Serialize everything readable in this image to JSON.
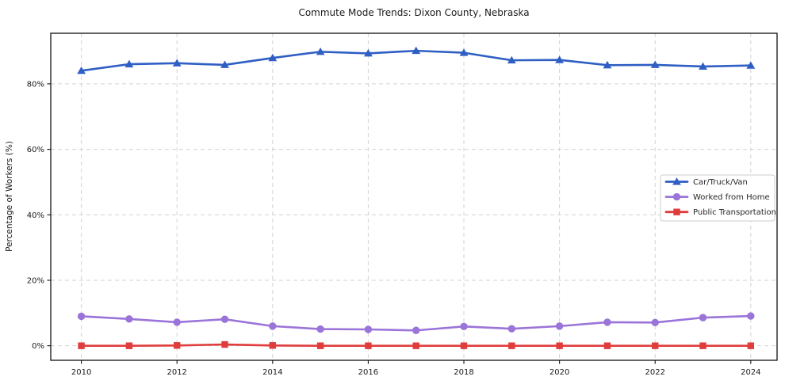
{
  "chart_data": {
    "type": "line",
    "title": "Commute Mode Trends: Dixon County, Nebraska",
    "xlabel": "",
    "ylabel": "Percentage of Workers (%)",
    "x": [
      2010,
      2011,
      2012,
      2013,
      2014,
      2015,
      2016,
      2017,
      2018,
      2019,
      2020,
      2021,
      2022,
      2023,
      2024
    ],
    "series": [
      {
        "name": "Car/Truck/Van",
        "marker": "triangle-up",
        "color": "#2f5fc4",
        "values": [
          84.0,
          86.0,
          86.3,
          85.8,
          87.9,
          89.8,
          89.3,
          90.1,
          89.5,
          87.2,
          87.3,
          85.7,
          85.8,
          85.3,
          85.6
        ]
      },
      {
        "name": "Worked from Home",
        "marker": "circle",
        "color": "#9b74d9",
        "values": [
          9.0,
          8.2,
          7.2,
          8.1,
          6.0,
          5.1,
          5.0,
          4.7,
          5.9,
          5.2,
          6.0,
          7.2,
          7.1,
          8.6,
          9.1
        ]
      },
      {
        "name": "Public Transportation",
        "marker": "square",
        "color": "#e03c3c",
        "values": [
          0.0,
          0.0,
          0.1,
          0.4,
          0.1,
          0.0,
          0.0,
          0.0,
          0.0,
          0.0,
          0.0,
          0.0,
          0.0,
          0.0,
          0.0
        ]
      }
    ],
    "xtick_values": [
      2010,
      2012,
      2014,
      2016,
      2018,
      2020,
      2022,
      2024
    ],
    "xtick_labels": [
      "2010",
      "2012",
      "2014",
      "2016",
      "2018",
      "2020",
      "2022",
      "2024"
    ],
    "ytick_values": [
      0,
      20,
      40,
      60,
      80
    ],
    "ytick_labels": [
      "0%",
      "20%",
      "40%",
      "60%",
      "80%"
    ],
    "xlim": [
      2009.36,
      2024.55
    ],
    "ylim": [
      -4.43,
      95.45
    ],
    "grid": true,
    "grid_color": "#d2d2d2",
    "spine_color": "#111111",
    "legend_position": "center right"
  }
}
